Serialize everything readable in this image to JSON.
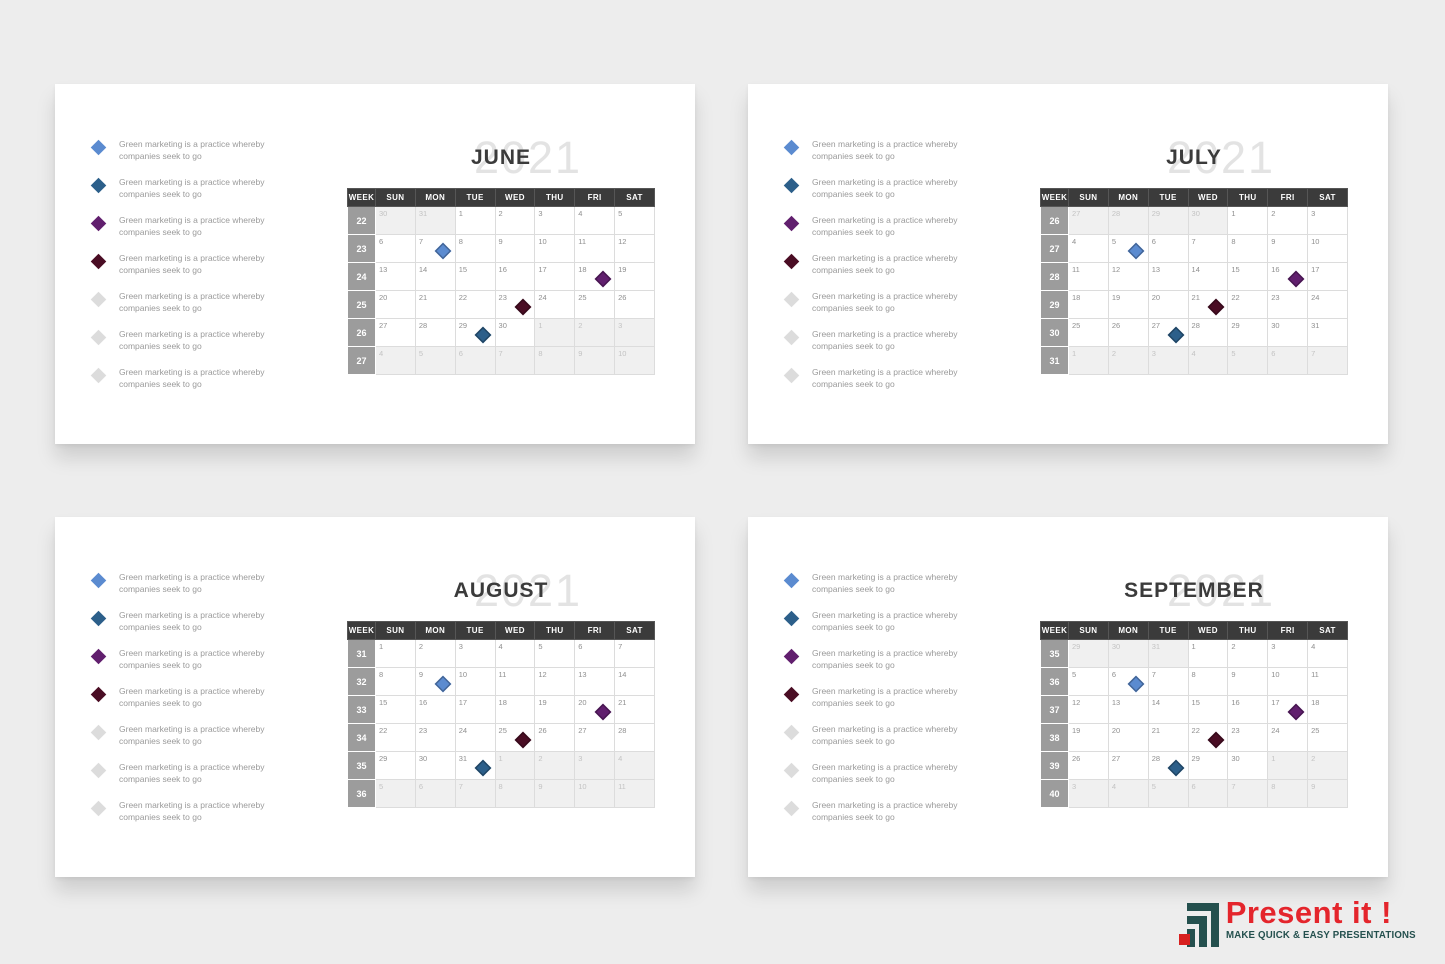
{
  "page": {
    "background": "#ededed"
  },
  "year": "2021",
  "day_headers": [
    "WEEK",
    "SUN",
    "MON",
    "TUE",
    "WED",
    "THU",
    "FRI",
    "SAT"
  ],
  "legend": {
    "text": "Green marketing is a practice whereby companies seek to go",
    "colors": [
      "#5b8bd0",
      "#2c5f8a",
      "#611f6e",
      "#4a0d24",
      "#dcdcdc",
      "#dcdcdc",
      "#dcdcdc"
    ]
  },
  "marker_colors": {
    "blue": "#5b8bd0",
    "steel": "#2c5f8a",
    "purple": "#611f6e",
    "maroon": "#4a0d24"
  },
  "slides": [
    {
      "month": "JUNE",
      "weeks": [
        {
          "week": "22",
          "days": [
            {
              "d": "30",
              "other": true
            },
            {
              "d": "31",
              "other": true
            },
            {
              "d": "1"
            },
            {
              "d": "2"
            },
            {
              "d": "3"
            },
            {
              "d": "4"
            },
            {
              "d": "5"
            }
          ]
        },
        {
          "week": "23",
          "days": [
            {
              "d": "6"
            },
            {
              "d": "7",
              "marker": "blue"
            },
            {
              "d": "8"
            },
            {
              "d": "9"
            },
            {
              "d": "10"
            },
            {
              "d": "11"
            },
            {
              "d": "12"
            }
          ]
        },
        {
          "week": "24",
          "days": [
            {
              "d": "13"
            },
            {
              "d": "14"
            },
            {
              "d": "15"
            },
            {
              "d": "16"
            },
            {
              "d": "17"
            },
            {
              "d": "18",
              "marker": "purple"
            },
            {
              "d": "19"
            }
          ]
        },
        {
          "week": "25",
          "days": [
            {
              "d": "20"
            },
            {
              "d": "21"
            },
            {
              "d": "22"
            },
            {
              "d": "23",
              "marker": "maroon"
            },
            {
              "d": "24"
            },
            {
              "d": "25"
            },
            {
              "d": "26"
            }
          ]
        },
        {
          "week": "26",
          "days": [
            {
              "d": "27"
            },
            {
              "d": "28"
            },
            {
              "d": "29",
              "marker": "steel"
            },
            {
              "d": "30"
            },
            {
              "d": "1",
              "other": true
            },
            {
              "d": "2",
              "other": true
            },
            {
              "d": "3",
              "other": true
            }
          ]
        },
        {
          "week": "27",
          "days": [
            {
              "d": "4",
              "other": true
            },
            {
              "d": "5",
              "other": true
            },
            {
              "d": "6",
              "other": true
            },
            {
              "d": "7",
              "other": true
            },
            {
              "d": "8",
              "other": true
            },
            {
              "d": "9",
              "other": true
            },
            {
              "d": "10",
              "other": true
            }
          ]
        }
      ]
    },
    {
      "month": "JULY",
      "weeks": [
        {
          "week": "26",
          "days": [
            {
              "d": "27",
              "other": true
            },
            {
              "d": "28",
              "other": true
            },
            {
              "d": "29",
              "other": true
            },
            {
              "d": "30",
              "other": true
            },
            {
              "d": "1"
            },
            {
              "d": "2"
            },
            {
              "d": "3"
            }
          ]
        },
        {
          "week": "27",
          "days": [
            {
              "d": "4"
            },
            {
              "d": "5",
              "marker": "blue"
            },
            {
              "d": "6"
            },
            {
              "d": "7"
            },
            {
              "d": "8"
            },
            {
              "d": "9"
            },
            {
              "d": "10"
            }
          ]
        },
        {
          "week": "28",
          "days": [
            {
              "d": "11"
            },
            {
              "d": "12"
            },
            {
              "d": "13"
            },
            {
              "d": "14"
            },
            {
              "d": "15"
            },
            {
              "d": "16",
              "marker": "purple"
            },
            {
              "d": "17"
            }
          ]
        },
        {
          "week": "29",
          "days": [
            {
              "d": "18"
            },
            {
              "d": "19"
            },
            {
              "d": "20"
            },
            {
              "d": "21",
              "marker": "maroon"
            },
            {
              "d": "22"
            },
            {
              "d": "23"
            },
            {
              "d": "24"
            }
          ]
        },
        {
          "week": "30",
          "days": [
            {
              "d": "25"
            },
            {
              "d": "26"
            },
            {
              "d": "27",
              "marker": "steel"
            },
            {
              "d": "28"
            },
            {
              "d": "29"
            },
            {
              "d": "30"
            },
            {
              "d": "31"
            }
          ]
        },
        {
          "week": "31",
          "days": [
            {
              "d": "1",
              "other": true
            },
            {
              "d": "2",
              "other": true
            },
            {
              "d": "3",
              "other": true
            },
            {
              "d": "4",
              "other": true
            },
            {
              "d": "5",
              "other": true
            },
            {
              "d": "6",
              "other": true
            },
            {
              "d": "7",
              "other": true
            }
          ]
        }
      ]
    },
    {
      "month": "AUGUST",
      "weeks": [
        {
          "week": "31",
          "days": [
            {
              "d": "1"
            },
            {
              "d": "2"
            },
            {
              "d": "3"
            },
            {
              "d": "4"
            },
            {
              "d": "5"
            },
            {
              "d": "6"
            },
            {
              "d": "7"
            }
          ]
        },
        {
          "week": "32",
          "days": [
            {
              "d": "8"
            },
            {
              "d": "9",
              "marker": "blue"
            },
            {
              "d": "10"
            },
            {
              "d": "11"
            },
            {
              "d": "12"
            },
            {
              "d": "13"
            },
            {
              "d": "14"
            }
          ]
        },
        {
          "week": "33",
          "days": [
            {
              "d": "15"
            },
            {
              "d": "16"
            },
            {
              "d": "17"
            },
            {
              "d": "18"
            },
            {
              "d": "19"
            },
            {
              "d": "20",
              "marker": "purple"
            },
            {
              "d": "21"
            }
          ]
        },
        {
          "week": "34",
          "days": [
            {
              "d": "22"
            },
            {
              "d": "23"
            },
            {
              "d": "24"
            },
            {
              "d": "25",
              "marker": "maroon"
            },
            {
              "d": "26"
            },
            {
              "d": "27"
            },
            {
              "d": "28"
            }
          ]
        },
        {
          "week": "35",
          "days": [
            {
              "d": "29"
            },
            {
              "d": "30"
            },
            {
              "d": "31",
              "marker": "steel"
            },
            {
              "d": "1",
              "other": true
            },
            {
              "d": "2",
              "other": true
            },
            {
              "d": "3",
              "other": true
            },
            {
              "d": "4",
              "other": true
            }
          ]
        },
        {
          "week": "36",
          "days": [
            {
              "d": "5",
              "other": true
            },
            {
              "d": "6",
              "other": true
            },
            {
              "d": "7",
              "other": true
            },
            {
              "d": "8",
              "other": true
            },
            {
              "d": "9",
              "other": true
            },
            {
              "d": "10",
              "other": true
            },
            {
              "d": "11",
              "other": true
            }
          ]
        }
      ]
    },
    {
      "month": "SEPTEMBER",
      "weeks": [
        {
          "week": "35",
          "days": [
            {
              "d": "29",
              "other": true
            },
            {
              "d": "30",
              "other": true
            },
            {
              "d": "31",
              "other": true
            },
            {
              "d": "1"
            },
            {
              "d": "2"
            },
            {
              "d": "3"
            },
            {
              "d": "4"
            }
          ]
        },
        {
          "week": "36",
          "days": [
            {
              "d": "5"
            },
            {
              "d": "6",
              "marker": "blue"
            },
            {
              "d": "7"
            },
            {
              "d": "8"
            },
            {
              "d": "9"
            },
            {
              "d": "10"
            },
            {
              "d": "11"
            }
          ]
        },
        {
          "week": "37",
          "days": [
            {
              "d": "12"
            },
            {
              "d": "13"
            },
            {
              "d": "14"
            },
            {
              "d": "15"
            },
            {
              "d": "16"
            },
            {
              "d": "17",
              "marker": "purple"
            },
            {
              "d": "18"
            }
          ]
        },
        {
          "week": "38",
          "days": [
            {
              "d": "19"
            },
            {
              "d": "20"
            },
            {
              "d": "21"
            },
            {
              "d": "22",
              "marker": "maroon"
            },
            {
              "d": "23"
            },
            {
              "d": "24"
            },
            {
              "d": "25"
            }
          ]
        },
        {
          "week": "39",
          "days": [
            {
              "d": "26"
            },
            {
              "d": "27"
            },
            {
              "d": "28",
              "marker": "steel"
            },
            {
              "d": "29"
            },
            {
              "d": "30"
            },
            {
              "d": "1",
              "other": true
            },
            {
              "d": "2",
              "other": true
            }
          ]
        },
        {
          "week": "40",
          "days": [
            {
              "d": "3",
              "other": true
            },
            {
              "d": "4",
              "other": true
            },
            {
              "d": "5",
              "other": true
            },
            {
              "d": "6",
              "other": true
            },
            {
              "d": "7",
              "other": true
            },
            {
              "d": "8",
              "other": true
            },
            {
              "d": "9",
              "other": true
            }
          ]
        }
      ]
    }
  ],
  "logo": {
    "title": "Present it !",
    "tagline": "MAKE QUICK & EASY PRESENTATIONS",
    "red": "#e4252c",
    "teal": "#24504e"
  }
}
